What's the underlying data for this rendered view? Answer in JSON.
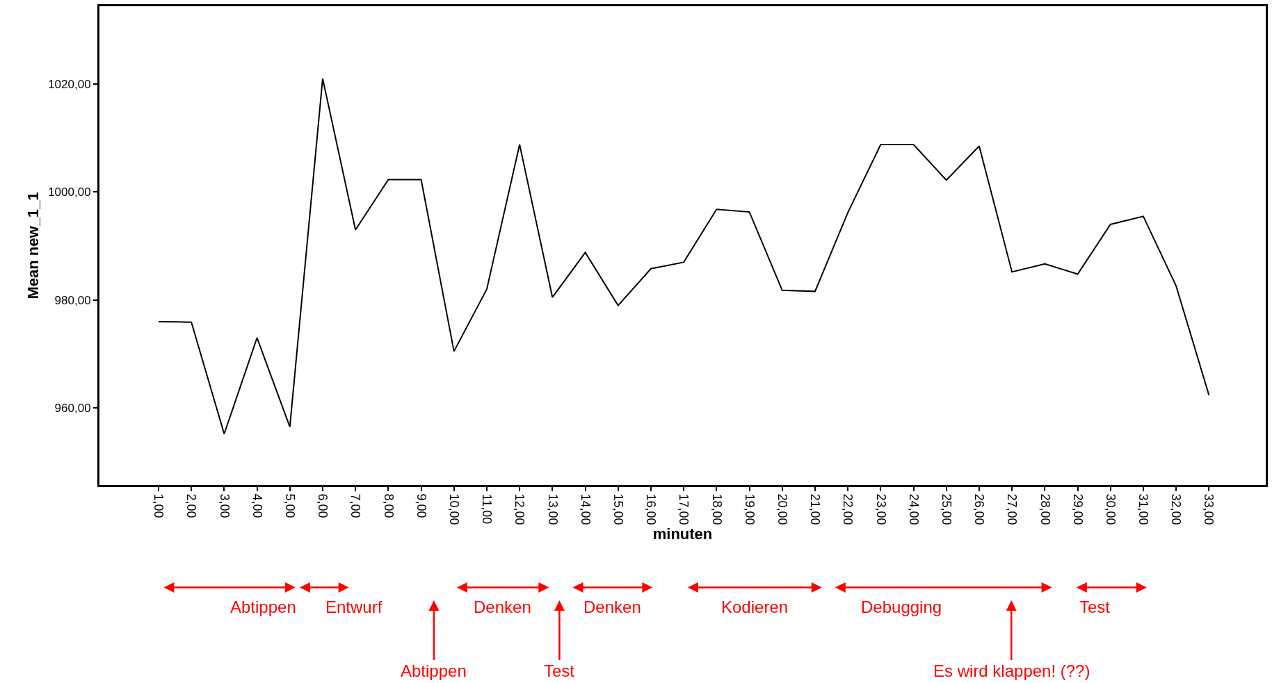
{
  "chart_data": {
    "type": "line",
    "xlabel": "minuten",
    "ylabel": "Mean new_1_1",
    "x": [
      1,
      2,
      3,
      4,
      5,
      6,
      7,
      8,
      9,
      10,
      11,
      12,
      13,
      14,
      15,
      16,
      17,
      18,
      19,
      20,
      21,
      22,
      23,
      24,
      25,
      26,
      27,
      28,
      29,
      30,
      31,
      32,
      33
    ],
    "series": [
      {
        "color": "#000000",
        "values": [
          976.0,
          975.9,
          955.2,
          973.0,
          956.5,
          1021.0,
          993.0,
          1002.3,
          1002.3,
          970.5,
          982.0,
          1008.8,
          980.5,
          988.8,
          979.0,
          985.8,
          987.0,
          996.8,
          996.3,
          981.8,
          981.6,
          996.2,
          1008.8,
          1008.8,
          1002.2,
          1008.5,
          985.2,
          986.7,
          984.8,
          994.0,
          995.5,
          982.6,
          962.4
        ]
      }
    ],
    "xlim": [
      -0.8,
      34.73
    ],
    "xticks": [
      {
        "value": 1,
        "label": "1,00"
      },
      {
        "value": 2,
        "label": "2,00"
      },
      {
        "value": 3,
        "label": "3,00"
      },
      {
        "value": 4,
        "label": "4,00"
      },
      {
        "value": 5,
        "label": "5,00"
      },
      {
        "value": 6,
        "label": "6,00"
      },
      {
        "value": 7,
        "label": "7,00"
      },
      {
        "value": 8,
        "label": "8,00"
      },
      {
        "value": 9,
        "label": "9,00"
      },
      {
        "value": 10,
        "label": "10,00"
      },
      {
        "value": 11,
        "label": "11,00"
      },
      {
        "value": 12,
        "label": "12,00"
      },
      {
        "value": 13,
        "label": "13,00"
      },
      {
        "value": 14,
        "label": "14,00"
      },
      {
        "value": 15,
        "label": "15,00"
      },
      {
        "value": 16,
        "label": "16,00"
      },
      {
        "value": 17,
        "label": "17,00"
      },
      {
        "value": 18,
        "label": "18,00"
      },
      {
        "value": 19,
        "label": "19,00"
      },
      {
        "value": 20,
        "label": "20,00"
      },
      {
        "value": 21,
        "label": "21,00"
      },
      {
        "value": 22,
        "label": "22,00"
      },
      {
        "value": 23,
        "label": "23,00"
      },
      {
        "value": 24,
        "label": "24,00"
      },
      {
        "value": 25,
        "label": "25,00"
      },
      {
        "value": 26,
        "label": "26,00"
      },
      {
        "value": 27,
        "label": "27,00"
      },
      {
        "value": 28,
        "label": "28,00"
      },
      {
        "value": 29,
        "label": "29,00"
      },
      {
        "value": 30,
        "label": "30,00"
      },
      {
        "value": 31,
        "label": "31,00"
      },
      {
        "value": 32,
        "label": "32,00"
      },
      {
        "value": 33,
        "label": "33,00"
      }
    ],
    "ylim": [
      945.75,
      1034.4
    ],
    "yticks": [
      {
        "value": 960,
        "label": "960,00"
      },
      {
        "value": 980,
        "label": "980,00"
      },
      {
        "value": 1000,
        "label": "1000,00"
      },
      {
        "value": 1020,
        "label": "1020,00"
      }
    ],
    "marker": "none",
    "line_style": "solid",
    "annotations": [
      "Abtippen",
      "Entwurf",
      "Denken",
      "Denken",
      "Kodieren",
      "Debugging",
      "Test",
      "Abtippen",
      "Test",
      "Es wird klappen! (??)"
    ]
  }
}
